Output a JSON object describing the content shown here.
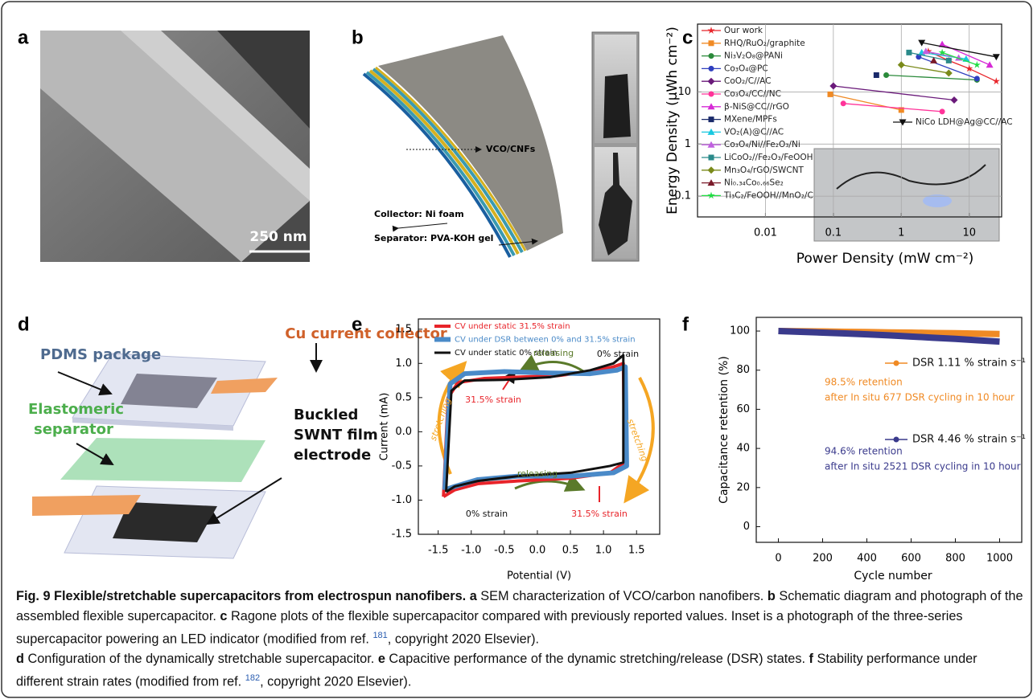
{
  "panels": [
    "a",
    "b",
    "c",
    "d",
    "e",
    "f"
  ],
  "panel_a": {
    "scale_bar": "250 nm"
  },
  "panel_b": {
    "labels": [
      "VCO/CNFs",
      "Collector: Ni foam",
      "Separator: PVA-KOH gel"
    ]
  },
  "panel_d": {
    "labels": [
      "Cu current collector",
      "PDMS package",
      "Elastomeric",
      "separator",
      "Buckled",
      "SWNT film",
      "electrode"
    ]
  },
  "chart_data": [
    {
      "type": "line",
      "xlabel": "Power Density (mW cm⁻²)",
      "ylabel": "Energy Density (μWh cm⁻²)",
      "xscale": "log",
      "yscale": "log",
      "grid": true,
      "xlim": [
        0.001,
        30
      ],
      "ylim": [
        0.04,
        200
      ],
      "xticks": [
        0.01,
        0.1,
        1,
        10
      ],
      "yticks": [
        0.1,
        1,
        10
      ],
      "series": [
        {
          "name": "Our work",
          "color": "#e8242a",
          "marker": "star",
          "x": [
            2.5,
            5,
            10,
            25
          ],
          "values": [
            60,
            40,
            28,
            16
          ]
        },
        {
          "name": "RHQ/RuO₂/graphite",
          "color": "#f08a24",
          "marker": "square",
          "x": [
            0.09,
            1
          ],
          "values": [
            9,
            4.5
          ]
        },
        {
          "name": "Ni₃V₂O₈@PANi",
          "color": "#2a8a3a",
          "marker": "circle",
          "x": [
            0.6,
            13
          ],
          "values": [
            21,
            17
          ]
        },
        {
          "name": "Co₃O₄@PC",
          "color": "#2f3fbf",
          "marker": "circle",
          "x": [
            1.8,
            13
          ],
          "values": [
            47,
            18
          ]
        },
        {
          "name": "CoO₂/C//AC",
          "color": "#6a1a7a",
          "marker": "diamond",
          "x": [
            0.1,
            6
          ],
          "values": [
            13,
            7
          ]
        },
        {
          "name": "Co₃O₄/CC//NC",
          "color": "#ff3399",
          "marker": "circle",
          "x": [
            0.14,
            4
          ],
          "values": [
            6,
            4.2
          ]
        },
        {
          "name": "β-NiS@CC//rGO",
          "color": "#d62ad6",
          "marker": "triangle",
          "x": [
            4,
            20
          ],
          "values": [
            82,
            33
          ]
        },
        {
          "name": "MXene/MPFs",
          "color": "#1a2a6a",
          "marker": "square",
          "x": [
            0.43
          ],
          "values": [
            21
          ]
        },
        {
          "name": "VO₂(A)@C//AC",
          "color": "#18c8e0",
          "marker": "triangle",
          "x": [
            2,
            9
          ],
          "values": [
            57,
            43
          ]
        },
        {
          "name": "Co₃O₄/Ni//Fe₂O₃/Ni",
          "color": "#c060e0",
          "marker": "triangle",
          "x": [
            2.3,
            7
          ],
          "values": [
            60,
            45
          ]
        },
        {
          "name": "LiCoO₂//Fe₂O₃/FeOOH",
          "color": "#2a8a8a",
          "marker": "square",
          "x": [
            1.3,
            5
          ],
          "values": [
            57,
            40
          ]
        },
        {
          "name": "Mn₃O₄/rGO/SWCNT",
          "color": "#7a8a1a",
          "marker": "diamond",
          "x": [
            1,
            5
          ],
          "values": [
            33,
            23
          ]
        },
        {
          "name": "Ni₀.₃₄Co₀.₆₆Se₂",
          "color": "#7a1a2a",
          "marker": "triangle",
          "x": [
            3
          ],
          "values": [
            40
          ]
        },
        {
          "name": "Ti₃C₂/FeOOH//MnO₂/C",
          "color": "#22dd44",
          "marker": "star",
          "x": [
            4,
            13
          ],
          "values": [
            57,
            33
          ]
        },
        {
          "name": "NiCo LDH@Ag@CC//AC",
          "color": "#111111",
          "marker": "triangle-down",
          "x": [
            2,
            25
          ],
          "values": [
            88,
            47
          ]
        }
      ]
    },
    {
      "type": "line",
      "xlabel": "Potential (V)",
      "ylabel": "Current (mA)",
      "grid": false,
      "xlim": [
        -1.8,
        1.85
      ],
      "ylim": [
        -1.5,
        1.65
      ],
      "xticks": [
        -1.5,
        {
          "value": -1,
          "label": "-1.0"
        },
        -0.5,
        {
          "value": 0,
          "label": "0.0"
        },
        0.5,
        {
          "value": 1,
          "label": "1.0"
        },
        1.5
      ],
      "yticks": [
        1.5,
        {
          "value": 1,
          "label": "1.0"
        },
        0.5,
        {
          "value": 0,
          "label": "0.0"
        },
        -0.5,
        {
          "value": -1,
          "label": "-1.0"
        },
        -1.5
      ],
      "series": [
        {
          "name": "CV under static 31.5% strain",
          "color": "#e8242a",
          "width": 4,
          "x": [
            -1.42,
            -1.35,
            -1.2,
            -0.8,
            -0.3,
            0.3,
            0.8,
            1.15,
            1.3,
            1.32,
            1.1,
            0.5,
            -0.3,
            -0.9,
            -1.25,
            -1.42
          ],
          "values": [
            -0.95,
            0.5,
            0.72,
            0.78,
            0.8,
            0.82,
            0.88,
            0.95,
            1.0,
            -0.45,
            -0.6,
            -0.68,
            -0.72,
            -0.76,
            -0.85,
            -0.95
          ]
        },
        {
          "name": "CV under DSR between 0% and 31.5% strain",
          "color": "#4a8ac8",
          "width": 6,
          "x": [
            -1.4,
            -1.32,
            -1.1,
            -0.5,
            0.2,
            0.8,
            1.2,
            1.33,
            1.35,
            1.15,
            0.5,
            -0.3,
            -0.9,
            -1.25,
            -1.4
          ],
          "values": [
            -0.85,
            0.7,
            0.85,
            0.88,
            0.86,
            0.85,
            0.9,
            0.95,
            -0.5,
            -0.6,
            -0.65,
            -0.65,
            -0.7,
            -0.8,
            -0.85
          ]
        },
        {
          "name": "CV under static 0% strain",
          "color": "#111111",
          "width": 3,
          "x": [
            -1.38,
            -1.3,
            -1.1,
            -0.5,
            0.2,
            0.8,
            1.15,
            1.3,
            1.3,
            1.1,
            0.5,
            -0.3,
            -0.9,
            -1.25,
            -1.38
          ],
          "values": [
            -0.88,
            0.6,
            0.75,
            0.76,
            0.8,
            0.9,
            1.0,
            1.12,
            -0.45,
            -0.5,
            -0.6,
            -0.65,
            -0.72,
            -0.8,
            -0.88
          ]
        }
      ],
      "annotations": [
        "stretching",
        "stretching",
        "releasing",
        "releasing",
        "0% strain",
        "31.5% strain",
        "0% strain",
        "31.5% strain"
      ]
    },
    {
      "type": "line",
      "xlabel": "Cycle number",
      "ylabel": "Capacitance retention (%)",
      "grid": false,
      "xlim": [
        -100,
        1100
      ],
      "ylim": [
        -8,
        107
      ],
      "xticks": [
        0,
        200,
        400,
        600,
        800,
        1000
      ],
      "yticks": [
        0,
        20,
        40,
        60,
        80,
        100
      ],
      "series": [
        {
          "name": "DSR 1.11 % strain s⁻¹",
          "color": "#f08a24",
          "width": 8,
          "marker": "circle",
          "x": [
            0,
            100,
            200,
            300,
            400,
            500,
            600,
            700,
            800,
            900,
            1000
          ],
          "values": [
            100,
            99.9,
            99.8,
            99.6,
            99.5,
            99.3,
            99.2,
            99,
            98.9,
            98.7,
            98.5
          ]
        },
        {
          "name": "DSR 4.46 % strain s⁻¹",
          "color": "#3a3a8c",
          "width": 8,
          "marker": "circle",
          "x": [
            0,
            100,
            200,
            300,
            400,
            500,
            600,
            700,
            800,
            900,
            1000
          ],
          "values": [
            100,
            99.6,
            99.2,
            98.8,
            98.3,
            97.8,
            97.2,
            96.6,
            96,
            95.3,
            94.6
          ]
        }
      ],
      "annotations": [
        "98.5% retention",
        "after In situ 677 DSR cycling in 10 hour",
        "94.6% retention",
        "after In situ 2521 DSR cycling in 10 hour"
      ]
    }
  ],
  "caption": [
    "Fig. 9 Flexible/stretchable supercapacitors from electrospun nanofibers.",
    "a",
    "SEM characterization of VCO/carbon nanofibers.",
    "b",
    "Schematic diagram and photograph of the assembled flexible supercapacitor.",
    "c",
    "Ragone plots of the flexible supercapacitor compared with previously reported values. Inset is a photograph of the three-series supercapacitor powering an LED indicator (modified from ref.",
    "181",
    ", copyright 2020 Elsevier).",
    "d",
    "Configuration of the dynamically stretchable supercapacitor.",
    "e",
    "Capacitive performance of the dynamic stretching/release (DSR) states.",
    "f",
    "Stability performance under different strain rates (modified from ref.",
    "182",
    ", copyright 2020 Elsevier)."
  ]
}
